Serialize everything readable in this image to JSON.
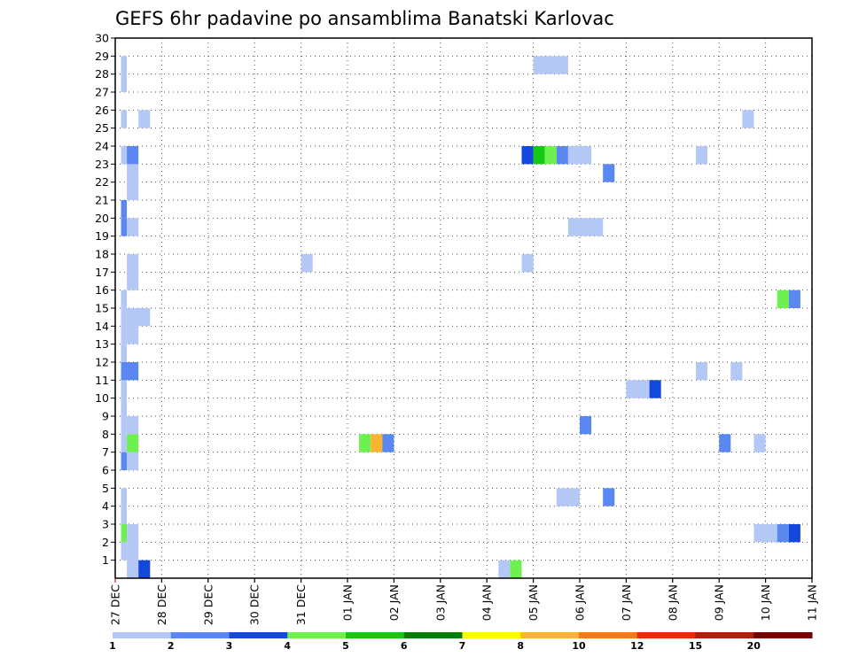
{
  "chart_data": {
    "type": "heatmap",
    "title": "GEFS 6hr padavine po ansamblima Banatski Karlovac",
    "xlabel": "",
    "ylabel": "",
    "x_ticks": [
      "27 DEC",
      "28 DEC",
      "29 DEC",
      "30 DEC",
      "31 DEC",
      "01 JAN",
      "02 JAN",
      "03 JAN",
      "04 JAN",
      "05 JAN",
      "06 JAN",
      "07 JAN",
      "08 JAN",
      "09 JAN",
      "10 JAN",
      "11 JAN"
    ],
    "x_range_days": [
      0,
      15
    ],
    "step_hours": 6,
    "y_ticks": [
      "1",
      "2",
      "3",
      "4",
      "5",
      "6",
      "7",
      "8",
      "9",
      "10",
      "11",
      "12",
      "13",
      "14",
      "15",
      "16",
      "17",
      "18",
      "19",
      "20",
      "21",
      "22",
      "23",
      "24",
      "25",
      "26",
      "27",
      "28",
      "29",
      "30"
    ],
    "y_range": [
      0,
      30
    ],
    "grid": true,
    "colorbar": {
      "labels": [
        "1",
        "2",
        "3",
        "4",
        "5",
        "6",
        "7",
        "8",
        "10",
        "12",
        "15",
        "20"
      ],
      "bin_colors": [
        "#b4c8f5",
        "#5a87f0",
        "#1448dc",
        "#6ef050",
        "#14c814",
        "#057d05",
        "#fafa00",
        "#fab432",
        "#fa7814",
        "#e12d0a",
        "#b41e0a",
        "#780000"
      ]
    },
    "cells": [
      {
        "y": 0,
        "x0": 1,
        "x1": 2,
        "bin": 0
      },
      {
        "y": 0,
        "x0": 2,
        "x1": 3,
        "bin": 2
      },
      {
        "y": 0,
        "x0": 33,
        "x1": 34,
        "bin": 0
      },
      {
        "y": 0,
        "x0": 34,
        "x1": 35,
        "bin": 3
      },
      {
        "y": 1,
        "x0": 0.5,
        "x1": 1,
        "bin": 0
      },
      {
        "y": 1,
        "x0": 1,
        "x1": 2,
        "bin": 0
      },
      {
        "y": 2,
        "x0": 0.5,
        "x1": 1,
        "bin": 3
      },
      {
        "y": 2,
        "x0": 1,
        "x1": 2,
        "bin": 0
      },
      {
        "y": 2,
        "x0": 55,
        "x1": 57,
        "bin": 0
      },
      {
        "y": 2,
        "x0": 57,
        "x1": 58,
        "bin": 1
      },
      {
        "y": 2,
        "x0": 58,
        "x1": 59,
        "bin": 2
      },
      {
        "y": 3,
        "x0": 0.5,
        "x1": 1,
        "bin": 0
      },
      {
        "y": 4,
        "x0": 0.5,
        "x1": 1,
        "bin": 0
      },
      {
        "y": 4,
        "x0": 38,
        "x1": 40,
        "bin": 0
      },
      {
        "y": 4,
        "x0": 42,
        "x1": 43,
        "bin": 1
      },
      {
        "y": 6,
        "x0": 0.5,
        "x1": 1,
        "bin": 1
      },
      {
        "y": 6,
        "x0": 1,
        "x1": 2,
        "bin": 0
      },
      {
        "y": 7,
        "x0": 0.5,
        "x1": 1,
        "bin": 0
      },
      {
        "y": 7,
        "x0": 1,
        "x1": 2,
        "bin": 3
      },
      {
        "y": 7,
        "x0": 21,
        "x1": 22,
        "bin": 3
      },
      {
        "y": 7,
        "x0": 22,
        "x1": 23,
        "bin": 7
      },
      {
        "y": 7,
        "x0": 23,
        "x1": 24,
        "bin": 1
      },
      {
        "y": 7,
        "x0": 52,
        "x1": 53,
        "bin": 1
      },
      {
        "y": 7,
        "x0": 55,
        "x1": 56,
        "bin": 0
      },
      {
        "y": 8,
        "x0": 0.5,
        "x1": 2,
        "bin": 0
      },
      {
        "y": 8,
        "x0": 40,
        "x1": 41,
        "bin": 1
      },
      {
        "y": 9,
        "x0": 0.5,
        "x1": 1,
        "bin": 0
      },
      {
        "y": 10,
        "x0": 0.5,
        "x1": 1,
        "bin": 0
      },
      {
        "y": 10,
        "x0": 44,
        "x1": 46,
        "bin": 0
      },
      {
        "y": 10,
        "x0": 46,
        "x1": 47,
        "bin": 2
      },
      {
        "y": 11,
        "x0": 0.5,
        "x1": 2,
        "bin": 1
      },
      {
        "y": 11,
        "x0": 50,
        "x1": 51,
        "bin": 0
      },
      {
        "y": 11,
        "x0": 53,
        "x1": 54,
        "bin": 0
      },
      {
        "y": 12,
        "x0": 0.5,
        "x1": 1,
        "bin": 0
      },
      {
        "y": 13,
        "x0": 0.5,
        "x1": 2,
        "bin": 0
      },
      {
        "y": 14,
        "x0": 0.5,
        "x1": 3,
        "bin": 0
      },
      {
        "y": 15,
        "x0": 0.5,
        "x1": 1,
        "bin": 0
      },
      {
        "y": 15,
        "x0": 57,
        "x1": 58,
        "bin": 3
      },
      {
        "y": 15,
        "x0": 58,
        "x1": 59,
        "bin": 1
      },
      {
        "y": 16,
        "x0": 1,
        "x1": 2,
        "bin": 0
      },
      {
        "y": 17,
        "x0": 1,
        "x1": 2,
        "bin": 0
      },
      {
        "y": 17,
        "x0": 16,
        "x1": 17,
        "bin": 0
      },
      {
        "y": 17,
        "x0": 35,
        "x1": 36,
        "bin": 0
      },
      {
        "y": 19,
        "x0": 0.5,
        "x1": 1,
        "bin": 1
      },
      {
        "y": 19,
        "x0": 1,
        "x1": 2,
        "bin": 0
      },
      {
        "y": 19,
        "x0": 39,
        "x1": 42,
        "bin": 0
      },
      {
        "y": 20,
        "x0": 0.5,
        "x1": 1,
        "bin": 1
      },
      {
        "y": 21,
        "x0": 1,
        "x1": 2,
        "bin": 0
      },
      {
        "y": 22,
        "x0": 1,
        "x1": 2,
        "bin": 0
      },
      {
        "y": 22,
        "x0": 42,
        "x1": 43,
        "bin": 1
      },
      {
        "y": 23,
        "x0": 0.5,
        "x1": 1,
        "bin": 0
      },
      {
        "y": 23,
        "x0": 1,
        "x1": 2,
        "bin": 1
      },
      {
        "y": 23,
        "x0": 35,
        "x1": 36,
        "bin": 2
      },
      {
        "y": 23,
        "x0": 36,
        "x1": 37,
        "bin": 4
      },
      {
        "y": 23,
        "x0": 37,
        "x1": 38,
        "bin": 3
      },
      {
        "y": 23,
        "x0": 38,
        "x1": 39,
        "bin": 1
      },
      {
        "y": 23,
        "x0": 39,
        "x1": 41,
        "bin": 0
      },
      {
        "y": 23,
        "x0": 50,
        "x1": 51,
        "bin": 0
      },
      {
        "y": 25,
        "x0": 0.5,
        "x1": 1,
        "bin": 0
      },
      {
        "y": 25,
        "x0": 2,
        "x1": 3,
        "bin": 0
      },
      {
        "y": 25,
        "x0": 54,
        "x1": 55,
        "bin": 0
      },
      {
        "y": 27,
        "x0": 0.5,
        "x1": 1,
        "bin": 0
      },
      {
        "y": 28,
        "x0": 0.5,
        "x1": 1,
        "bin": 0
      },
      {
        "y": 28,
        "x0": 36,
        "x1": 39,
        "bin": 0
      }
    ]
  }
}
